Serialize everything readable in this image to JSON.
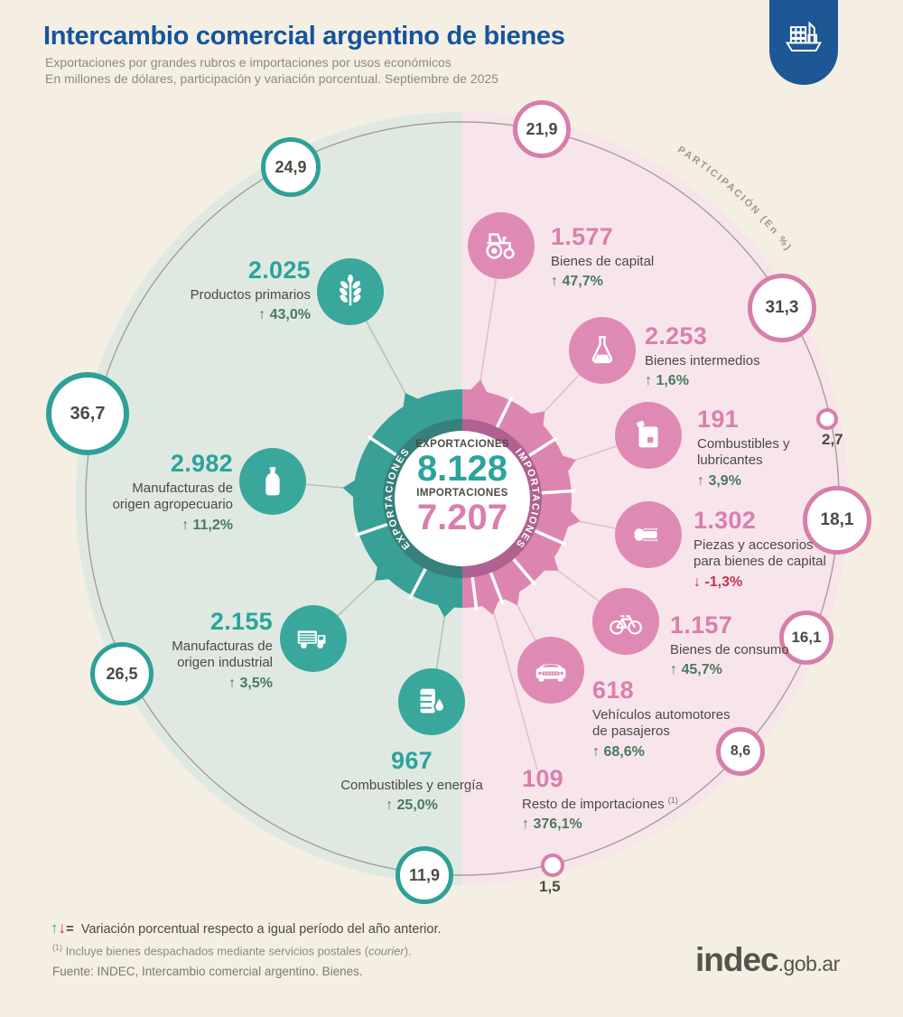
{
  "header": {
    "title": "Intercambio comercial argentino de bienes",
    "subtitle1": "Exportaciones por grandes rubros e importaciones por usos económicos",
    "subtitle2": "En millones de dólares, participación y variación porcentual. Septiembre de 2025"
  },
  "colors": {
    "title_blue": "#15549e",
    "teal": "#35a39a",
    "teal_dark": "#37807b",
    "pink": "#dd87b2",
    "pink_dark": "#af6290",
    "pale_green": "#dfe9e2",
    "pale_pink": "#f8e5eb",
    "positive_green": "#4a7a5e",
    "negative_red": "#c23450",
    "background": "#f4efe2",
    "badge_blue": "#1d5795"
  },
  "center": {
    "exports_label": "EXPORTACIONES",
    "exports_value": "8.128",
    "imports_label": "IMPORTACIONES",
    "imports_value": "7.207",
    "ring_left_label": "EXPORTACIONES",
    "ring_right_label": "IMPORTACIONES"
  },
  "arc_label": "PARTICIPACIÓN (En %)",
  "exports": [
    {
      "value": "2.025",
      "label": "Productos primarios",
      "arrow": "↑",
      "variation": "43,0%",
      "participation": "24,9",
      "icon": "wheat"
    },
    {
      "value": "2.982",
      "label": "Manufacturas de origen agropecuario",
      "arrow": "↑",
      "variation": "11,2%",
      "participation": "36,7",
      "icon": "bottle"
    },
    {
      "value": "2.155",
      "label": "Manufacturas de origen industrial",
      "arrow": "↑",
      "variation": "3,5%",
      "participation": "26,5",
      "icon": "truck"
    },
    {
      "value": "967",
      "label": "Combustibles y energía",
      "arrow": "↑",
      "variation": "25,0%",
      "participation": "11,9",
      "icon": "oil-barrel"
    }
  ],
  "imports": [
    {
      "value": "1.577",
      "label": "Bienes de capital",
      "arrow": "↑",
      "variation": "47,7%",
      "participation": "21,9",
      "icon": "tractor"
    },
    {
      "value": "2.253",
      "label": "Bienes intermedios",
      "arrow": "↑",
      "variation": "1,6%",
      "participation": "31,3",
      "icon": "flask"
    },
    {
      "value": "191",
      "label": "Combustibles y lubricantes",
      "arrow": "↑",
      "variation": "3,9%",
      "participation": "2,7",
      "icon": "jerrycan"
    },
    {
      "value": "1.302",
      "label": "Piezas y accesorios para bienes de capital",
      "arrow": "↓",
      "variation": "-1,3%",
      "participation": "18,1",
      "icon": "screw"
    },
    {
      "value": "1.157",
      "label": "Bienes de consumo",
      "arrow": "↑",
      "variation": "45,7%",
      "participation": "16,1",
      "icon": "bicycle"
    },
    {
      "value": "618",
      "label": "Vehículos automotores de pasajeros",
      "arrow": "↑",
      "variation": "68,6%",
      "participation": "8,6",
      "icon": "car"
    },
    {
      "value": "109",
      "label": "Resto de importaciones",
      "footnote_ref": "(1)",
      "arrow": "↑",
      "variation": "376,1%",
      "participation": "1,5",
      "icon": null
    }
  ],
  "footer": {
    "legend_up": "↑",
    "legend_down": "↓",
    "legend_eq": "=",
    "legend": "Variación porcentual respecto a igual período del año anterior.",
    "footnote_ref": "(1)",
    "footnote_pre": "Incluye bienes despachados mediante servicios postales (",
    "footnote_courier": "courier",
    "footnote_post": ").",
    "source": "Fuente: INDEC, Intercambio comercial argentino. Bienes.",
    "logo_main": "indec",
    "logo_suffix": ".gob.ar"
  },
  "chart_data": {
    "type": "pie",
    "title": "Intercambio comercial argentino de bienes",
    "subtitle": "Exportaciones por grandes rubros e importaciones por usos económicos",
    "unit": "millones de dólares",
    "period": "Septiembre de 2025",
    "series": [
      {
        "name": "Exportaciones",
        "total": 8128,
        "categories": [
          "Productos primarios",
          "Manufacturas de origen agropecuario",
          "Manufacturas de origen industrial",
          "Combustibles y energía"
        ],
        "values": [
          2025,
          2982,
          2155,
          967
        ],
        "participation_pct": [
          24.9,
          36.7,
          26.5,
          11.9
        ],
        "variation_pct": [
          43.0,
          11.2,
          3.5,
          25.0
        ]
      },
      {
        "name": "Importaciones",
        "total": 7207,
        "categories": [
          "Bienes de capital",
          "Bienes intermedios",
          "Combustibles y lubricantes",
          "Piezas y accesorios para bienes de capital",
          "Bienes de consumo",
          "Vehículos automotores de pasajeros",
          "Resto de importaciones"
        ],
        "values": [
          1577,
          2253,
          191,
          1302,
          1157,
          618,
          109
        ],
        "participation_pct": [
          21.9,
          31.3,
          2.7,
          18.1,
          16.1,
          8.6,
          1.5
        ],
        "variation_pct": [
          47.7,
          1.6,
          3.9,
          -1.3,
          45.7,
          68.6,
          376.1
        ]
      }
    ]
  }
}
